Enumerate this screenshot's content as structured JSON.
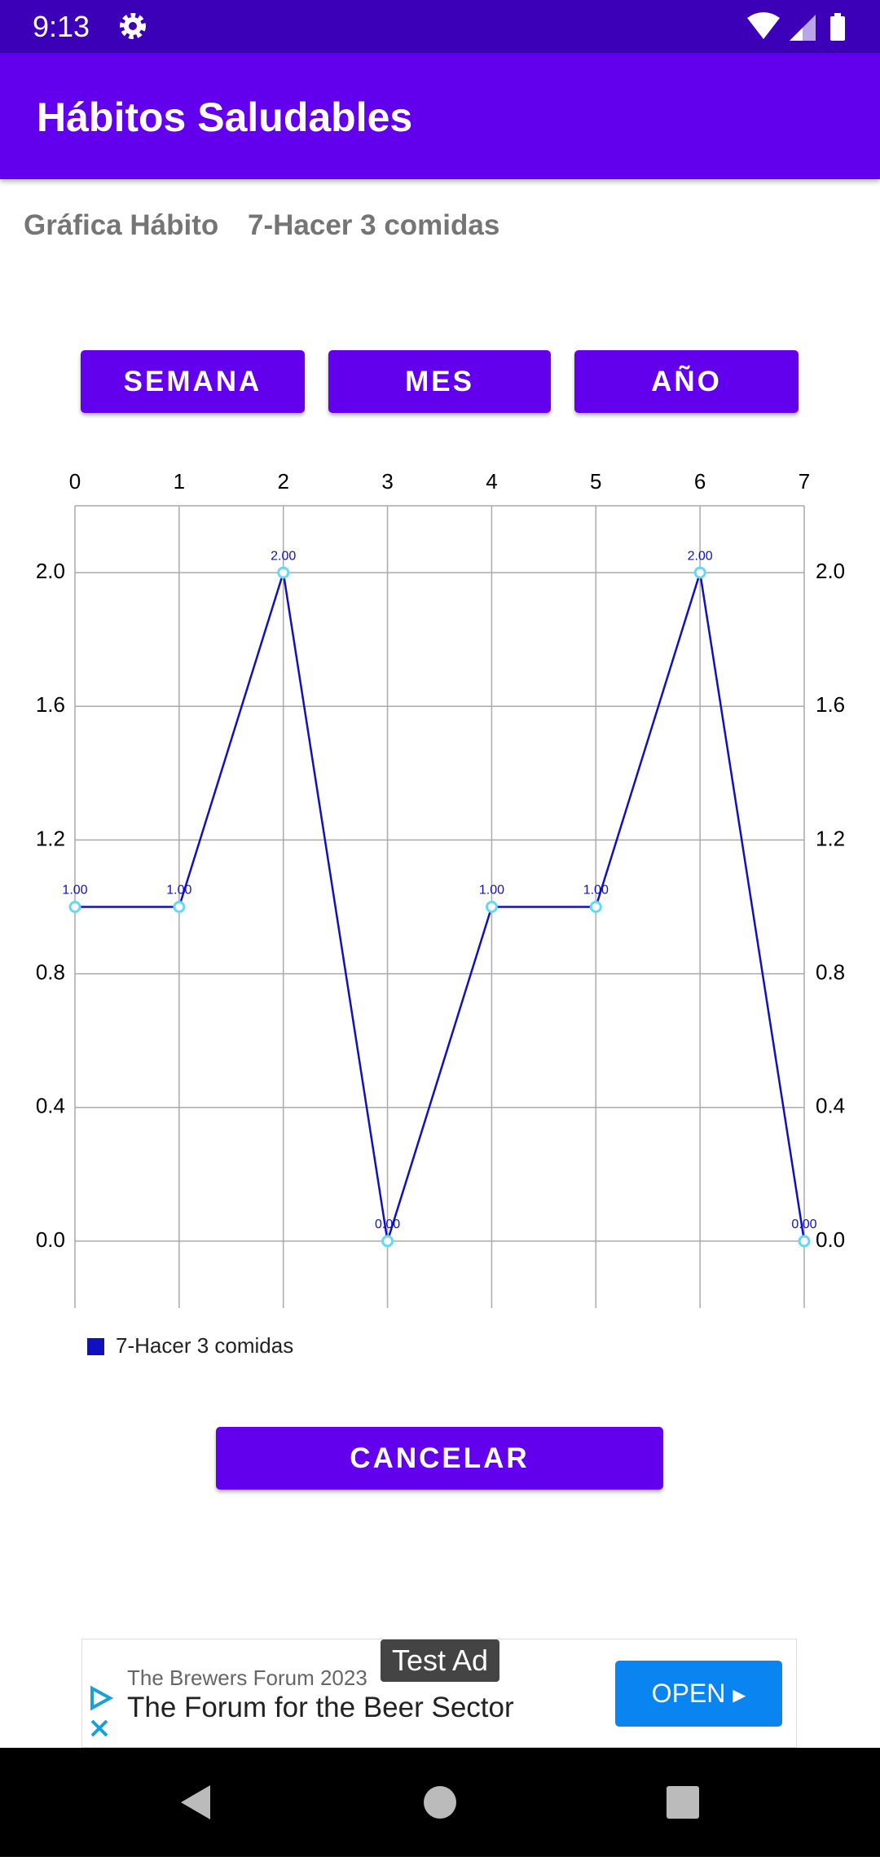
{
  "status_bar": {
    "time": "9:13"
  },
  "app_bar": {
    "title": "Hábitos Saludables"
  },
  "header": {
    "label": "Gráfica Hábito",
    "habit": "7-Hacer 3 comidas"
  },
  "buttons": [
    "SEMANA",
    "MES",
    "AÑO"
  ],
  "chart_data": {
    "type": "line",
    "x": [
      0,
      1,
      2,
      3,
      4,
      5,
      6,
      7
    ],
    "series": [
      {
        "name": "7-Hacer 3 comidas",
        "color": "#1010c0",
        "values": [
          1,
          1,
          2,
          0,
          1,
          1,
          2,
          0
        ],
        "value_labels": [
          "1.00",
          "1.00",
          "2.00",
          "0.00",
          "1.00",
          "1.00",
          "2.00",
          "0.00"
        ]
      }
    ],
    "xlim": [
      0,
      7
    ],
    "xticks": [
      0,
      1,
      2,
      3,
      4,
      5,
      6,
      7
    ],
    "ylim": [
      -0.2,
      2.2
    ],
    "yticks": [
      {
        "value": 0,
        "label": "0.0"
      },
      0.4,
      0.8,
      1.2,
      1.6,
      {
        "value": 2,
        "label": "2.0"
      }
    ],
    "grid": true
  },
  "cancel": "CANCELAR",
  "ad": {
    "badge": "Test Ad",
    "advertiser": "The Brewers Forum 2023",
    "headline": "The Forum for the Beer Sector",
    "cta": "OPEN"
  }
}
